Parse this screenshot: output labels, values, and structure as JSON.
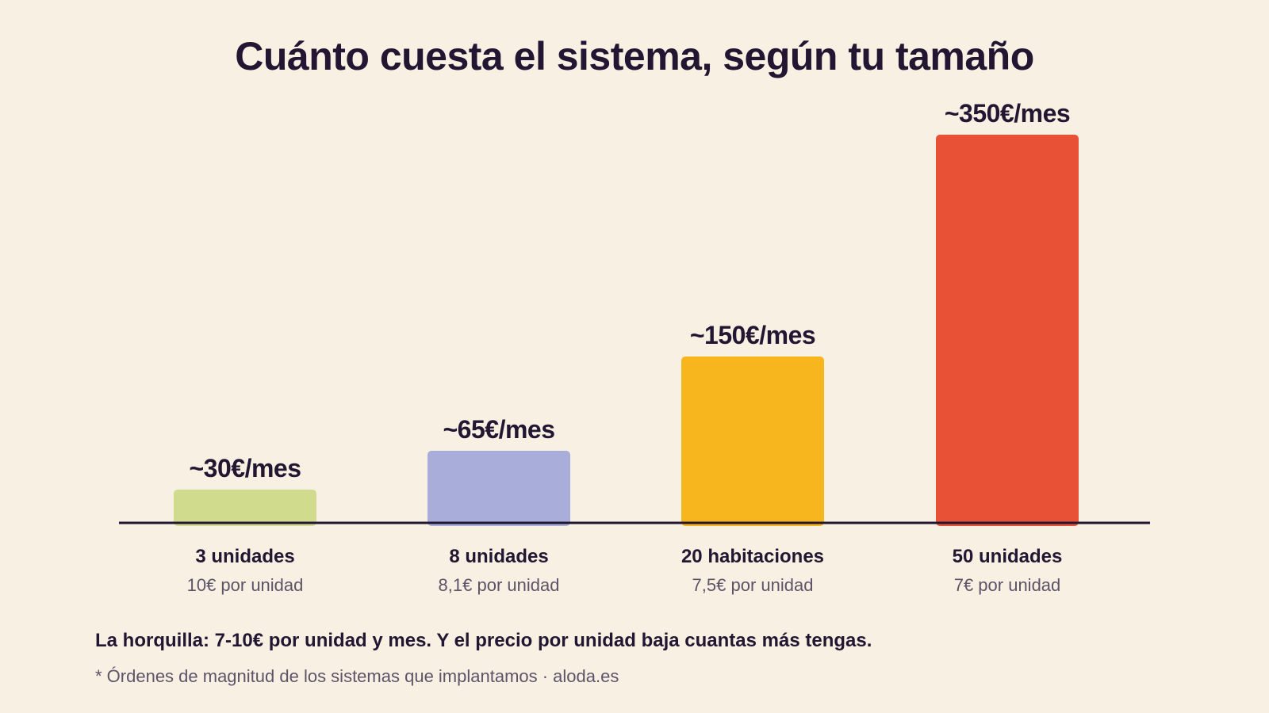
{
  "page": {
    "footnote": "La horquilla: 7-10€ por unidad y mes. Y el precio por unidad baja cuantas más tengas.",
    "source_note": "* Órdenes de magnitud de los sistemas que implantamos · aloda.es"
  },
  "chart_data": {
    "type": "bar",
    "title": "Cuánto cuesta el sistema, según tu tamaño",
    "xlabel": "",
    "ylabel": "",
    "grid": false,
    "categories": [
      "3 unidades",
      "8 unidades",
      "20 habitaciones",
      "50 unidades"
    ],
    "subtitles": [
      "10€ por unidad",
      "8,1€ por unidad",
      "7,5€ por unidad",
      "7€ por unidad"
    ],
    "values": [
      30,
      65,
      150,
      350
    ],
    "value_labels": [
      "~30€/mes",
      "~65€/mes",
      "~150€/mes",
      "~350€/mes"
    ],
    "ylim": [
      0,
      350
    ],
    "colors": [
      "#d0db8e",
      "#a8aed9",
      "#f8b61e",
      "#e85136"
    ],
    "axis_color": "#231632"
  }
}
